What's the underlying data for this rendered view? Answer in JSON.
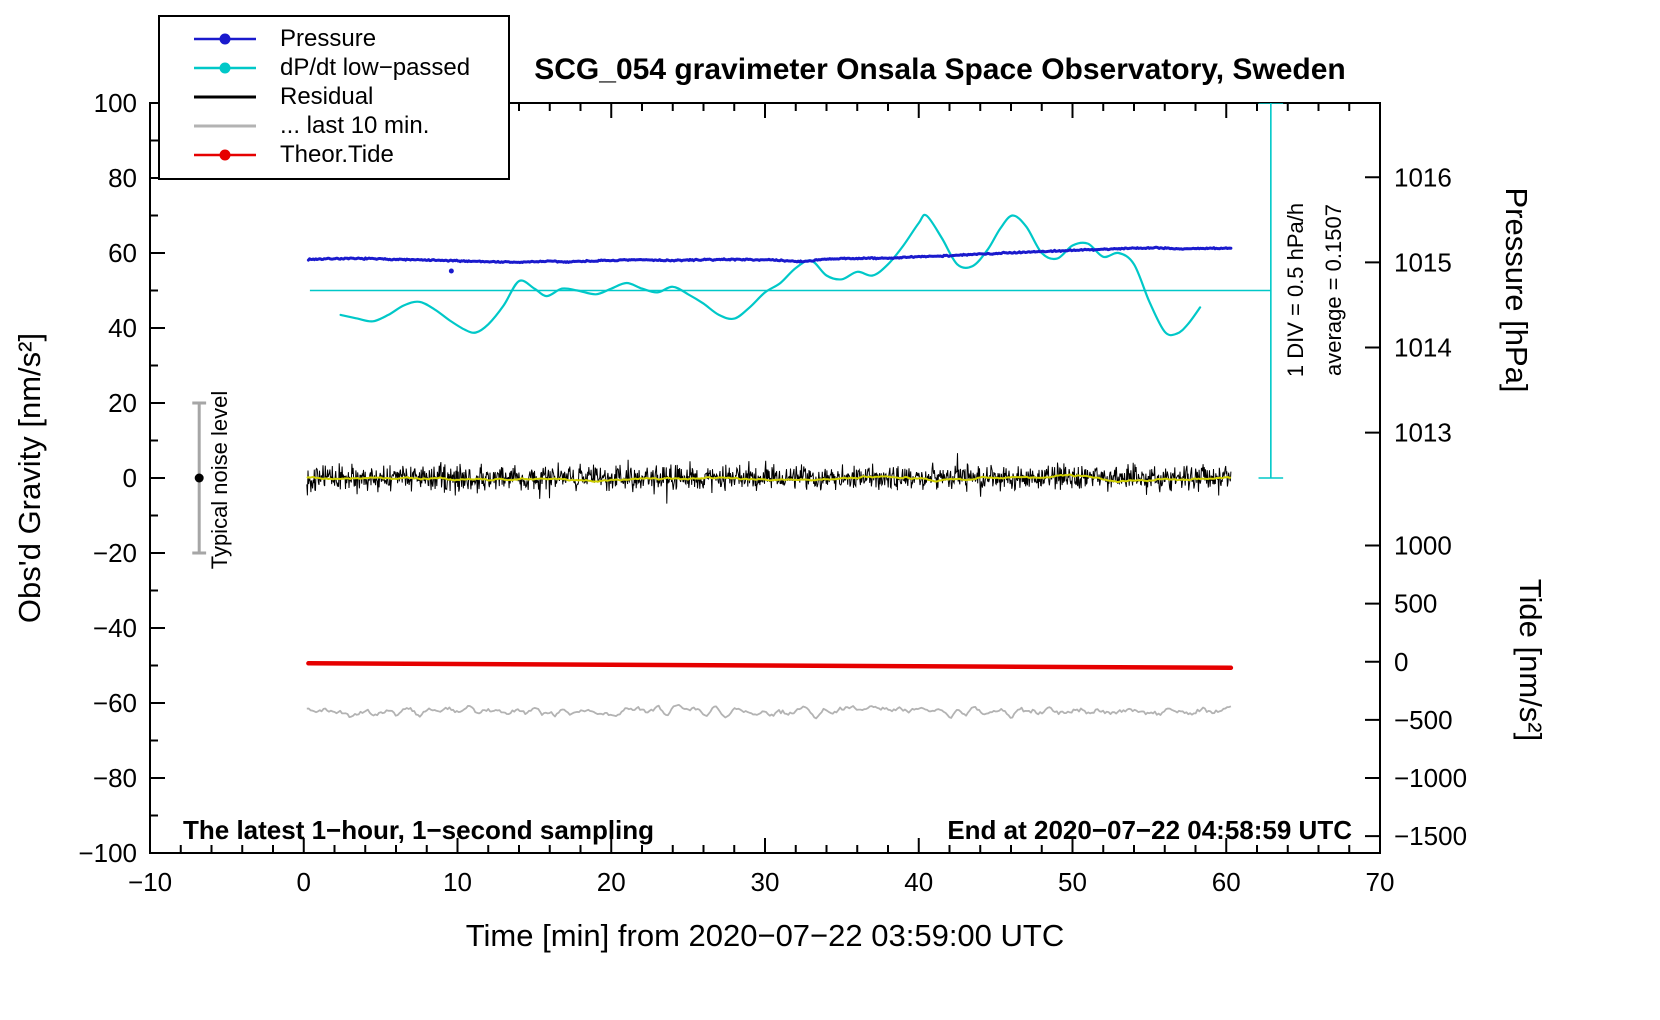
{
  "title": "SCG_054 gravimeter Onsala Space Observatory, Sweden",
  "annotations": {
    "sampling": "The latest 1−hour, 1−second sampling",
    "end": "End at 2020−07−22 04:58:59 UTC",
    "div_scale": "1 DIV = 0.5 hPa/h",
    "div_average": "average = 0.1507",
    "noise_level": "Typical noise level"
  },
  "chart_data": {
    "type": "line",
    "title": "SCG_054 gravimeter Onsala Space Observatory, Sweden",
    "x_axis": {
      "label": "Time [min] from 2020−07−22 03:59:00 UTC",
      "range": [
        -10,
        70
      ],
      "ticks": [
        -10,
        0,
        10,
        20,
        30,
        40,
        50,
        60,
        70
      ],
      "minor_step": 2
    },
    "y_axis": {
      "label": "Obs'd Gravity [nm/s²]",
      "range": [
        -100,
        100
      ],
      "ticks": [
        -100,
        -80,
        -60,
        -40,
        -20,
        0,
        20,
        40,
        60,
        80,
        100
      ],
      "minor_step": 10
    },
    "pressure_axis": {
      "label": "Pressure [hPa]",
      "ticks": [
        {
          "value": "1016",
          "g": 80.2
        },
        {
          "value": "1015",
          "g": 57.5
        },
        {
          "value": "1014",
          "g": 34.8
        },
        {
          "value": "1013",
          "g": 12.1
        }
      ]
    },
    "tide_axis": {
      "label": "Tide [nm/s²]",
      "ticks": [
        {
          "value": "1000",
          "g": -18
        },
        {
          "value": "500",
          "g": -33.5
        },
        {
          "value": "0",
          "g": -49
        },
        {
          "value": "−500",
          "g": -64.5
        },
        {
          "value": "−1000",
          "g": -80
        },
        {
          "value": "−1500",
          "g": -95.5
        }
      ]
    },
    "legend": [
      {
        "label": "Pressure",
        "color": "#1a1acd",
        "dot": true,
        "width": 2.5
      },
      {
        "label": "dP/dt low−passed",
        "color": "#00c8c8",
        "dot": true,
        "width": 2.5
      },
      {
        "label": "Residual",
        "color": "#000000",
        "dot": false,
        "width": 3
      },
      {
        "label": "... last 10 min.",
        "color": "#b3b3b3",
        "dot": false,
        "width": 3
      },
      {
        "label": "Theor.Tide",
        "color": "#e60000",
        "dot": true,
        "width": 2.5
      }
    ],
    "series": [
      {
        "name": "last10",
        "label": "... last 10 min.",
        "type": "smooth_noise",
        "color": "#b3b3b3",
        "width": 1.8,
        "baseline": -62.2,
        "amplitude": 1.9,
        "smooth_window": 2,
        "points": 500,
        "x_start": 0.2,
        "x_end": 60.3,
        "seed": 42
      },
      {
        "name": "theor_tide",
        "label": "Theor.Tide",
        "type": "line",
        "color": "#e60000",
        "width": 4.5,
        "x": [
          0.3,
          15,
          30,
          45,
          60.3
        ],
        "y": [
          -49.4,
          -49.7,
          -50.0,
          -50.3,
          -50.6
        ]
      },
      {
        "name": "residual",
        "label": "Residual",
        "type": "noise",
        "color": "#000000",
        "width": 1,
        "baseline": 0,
        "amplitude": 3.4,
        "spike_chance": 0.012,
        "spike_scale": 1.8,
        "points": 1600,
        "x_start": 0.2,
        "x_end": 60.3,
        "seed": 13
      },
      {
        "name": "residual_lowpass",
        "label": "Residual low-passed",
        "type": "smooth_noise",
        "color": "#d0d000",
        "width": 2,
        "baseline": -0.1,
        "amplitude": 1.0,
        "smooth_window": 15,
        "points": 600,
        "x_start": 0.2,
        "x_end": 60.3,
        "seed": 5
      },
      {
        "name": "dpdt",
        "label": "dP/dt low−passed",
        "type": "smooth",
        "color": "#00c8c8",
        "width": 2.2,
        "x": [
          2.4,
          3.5,
          4.5,
          5.5,
          6.5,
          7.5,
          8.5,
          9.5,
          10.5,
          11.2,
          12,
          13,
          14,
          15,
          15.8,
          16.8,
          17.8,
          19,
          20,
          21,
          22,
          23,
          24,
          25,
          26,
          27,
          28,
          29,
          30,
          31,
          32,
          33,
          34,
          35,
          36,
          37,
          38,
          39,
          40,
          40.5,
          41.5,
          42.5,
          43.5,
          44.5,
          45.3,
          46.1,
          47,
          48,
          49,
          50,
          51,
          52,
          53,
          54,
          55,
          56,
          56.8,
          57.5,
          58.3
        ],
        "y": [
          43.5,
          42.5,
          41.8,
          43.5,
          46,
          47,
          45,
          42,
          39.5,
          38.8,
          41,
          46,
          52.5,
          50.5,
          48.5,
          50.5,
          50,
          49,
          50.5,
          52,
          50.5,
          49.5,
          51,
          49,
          46.5,
          43.5,
          42.5,
          45.5,
          49.5,
          52,
          56,
          58,
          54,
          53,
          55,
          54,
          57,
          62,
          68,
          70,
          64,
          57,
          56.5,
          61,
          66.5,
          70,
          67,
          60,
          58.5,
          62,
          62.5,
          59,
          60,
          57,
          47,
          39,
          38.5,
          41,
          45.5
        ]
      },
      {
        "name": "pressure",
        "label": "Pressure",
        "type": "noisy_line",
        "color": "#1a1acd",
        "width": 3,
        "noise": 0.22,
        "points": 760,
        "seed": 7,
        "x": [
          0.3,
          2,
          4,
          6,
          8,
          10,
          12,
          14,
          15,
          16,
          17,
          18,
          20,
          22,
          24,
          26,
          28,
          30,
          31.5,
          32.5,
          33.5,
          35,
          36.5,
          38,
          40,
          42,
          44,
          46,
          48,
          50,
          52,
          54,
          55.5,
          57,
          58.5,
          60.3
        ],
        "y": [
          58.3,
          58.5,
          58.5,
          58.3,
          58.1,
          57.9,
          57.7,
          57.5,
          57.7,
          57.8,
          57.6,
          57.8,
          58.0,
          58.2,
          58.0,
          58.2,
          58.3,
          58.2,
          57.9,
          57.7,
          58.2,
          58.5,
          58.6,
          58.6,
          59.0,
          59.3,
          59.7,
          60.1,
          60.4,
          60.7,
          61.0,
          61.3,
          61.4,
          61.1,
          61.2,
          61.3
        ],
        "outliers": [
          [
            9.6,
            55.2
          ]
        ]
      }
    ],
    "reference": {
      "zero_line": {
        "g": 50,
        "x_start": 0.4,
        "x_end": 62.9,
        "color": "#00c8c8",
        "width": 1.6
      },
      "div_bar": {
        "x": 62.9,
        "g_top": 100,
        "g_bottom": 0,
        "cap_halfwidth": 0.8,
        "color": "#00c8c8",
        "width": 1.6
      },
      "noise_bar": {
        "x": -6.8,
        "g_low": -20,
        "g_high": 20,
        "cap_halfwidth": 0.45,
        "color": "#a6a6a6",
        "width": 3,
        "dot_g": 0,
        "dot_color": "#000000",
        "dot_r": 4.5
      }
    }
  }
}
